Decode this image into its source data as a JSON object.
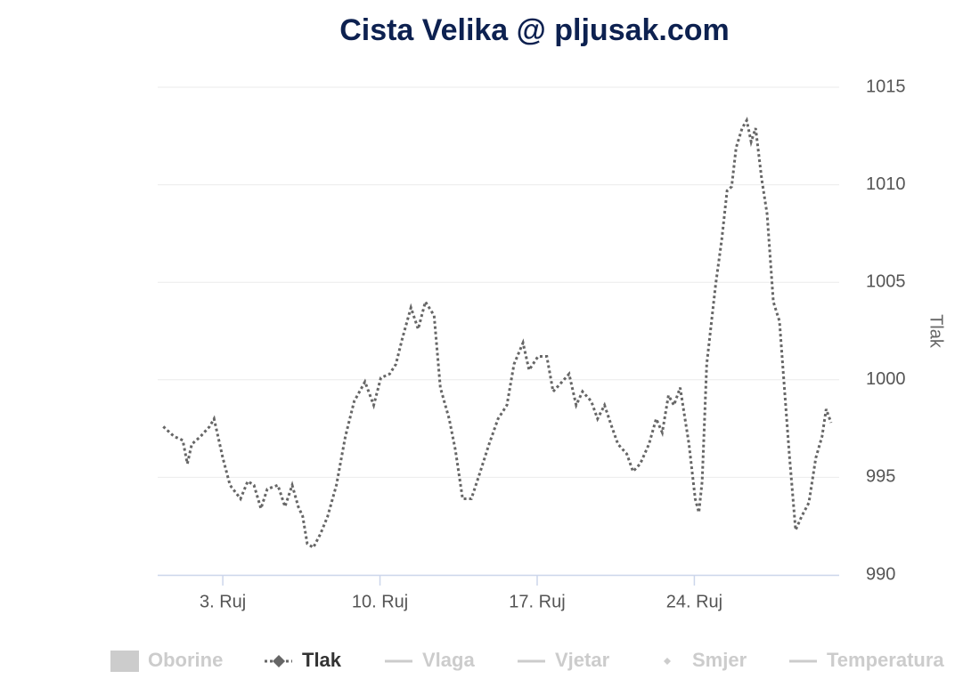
{
  "chart_data": {
    "type": "line",
    "title": "Cista Velika @ pljusak.com",
    "y_axis_label": "Tlak",
    "xlim": [
      0.1,
      30.45
    ],
    "xticks": [
      {
        "value": 3,
        "label": "3. Ruj"
      },
      {
        "value": 10,
        "label": "10. Ruj"
      },
      {
        "value": 17,
        "label": "17. Ruj"
      },
      {
        "value": 24,
        "label": "24. Ruj"
      }
    ],
    "ylim": [
      990,
      1015
    ],
    "yticks": [
      990,
      995,
      1000,
      1005,
      1010,
      1015
    ],
    "grid": true,
    "legend": [
      {
        "name": "Oborine",
        "symbol": "rect",
        "visible": false
      },
      {
        "name": "Tlak",
        "symbol": "line-diamond",
        "visible": true
      },
      {
        "name": "Vlaga",
        "symbol": "line",
        "visible": false
      },
      {
        "name": "Vjetar",
        "symbol": "line",
        "visible": false
      },
      {
        "name": "Smjer",
        "symbol": "diamond",
        "visible": false
      },
      {
        "name": "Temperatura",
        "symbol": "line",
        "visible": false
      }
    ],
    "series": [
      {
        "name": "Tlak",
        "color": "#666666",
        "dashed": true,
        "x": [
          0.35,
          0.83,
          1.22,
          1.42,
          1.62,
          2.01,
          2.41,
          2.61,
          3.0,
          3.32,
          3.79,
          4.11,
          4.39,
          4.7,
          4.98,
          5.45,
          5.77,
          6.09,
          6.36,
          6.56,
          6.76,
          7.03,
          7.35,
          7.67,
          8.06,
          8.46,
          8.85,
          9.33,
          9.72,
          10.04,
          10.43,
          10.71,
          10.99,
          11.38,
          11.7,
          12.02,
          12.41,
          12.69,
          13.08,
          13.36,
          13.68,
          14.07,
          14.47,
          14.86,
          15.26,
          15.65,
          15.97,
          16.37,
          16.64,
          17.04,
          17.43,
          17.71,
          18.11,
          18.42,
          18.74,
          19.02,
          19.41,
          19.69,
          20.0,
          20.32,
          20.6,
          20.99,
          21.27,
          21.59,
          21.98,
          22.3,
          22.57,
          22.85,
          23.09,
          23.37,
          23.76,
          24.04,
          24.2,
          24.35,
          24.55,
          24.95,
          25.22,
          25.46,
          25.66,
          25.86,
          26.13,
          26.33,
          26.53,
          26.73,
          27.0,
          27.24,
          27.52,
          27.79,
          27.99,
          28.23,
          28.51,
          28.78,
          29.1,
          29.41,
          29.69,
          29.87,
          30.09
        ],
        "values": [
          997.6,
          997.1,
          996.9,
          995.7,
          996.7,
          997.1,
          997.6,
          998.0,
          996.0,
          994.6,
          993.9,
          994.8,
          994.6,
          993.4,
          994.4,
          994.6,
          993.5,
          994.6,
          993.5,
          993.0,
          991.6,
          991.4,
          992.1,
          993.0,
          994.6,
          997.1,
          998.9,
          999.9,
          998.7,
          1000.1,
          1000.3,
          1000.8,
          1002.1,
          1003.7,
          1002.6,
          1004.0,
          1003.3,
          999.6,
          998.0,
          996.4,
          993.9,
          993.9,
          995.3,
          996.7,
          998.0,
          998.7,
          1000.8,
          1001.9,
          1000.5,
          1001.2,
          1001.2,
          999.4,
          999.9,
          1000.3,
          998.7,
          999.4,
          998.9,
          998.0,
          998.7,
          997.6,
          996.7,
          996.2,
          995.3,
          995.7,
          996.7,
          998.0,
          997.3,
          999.2,
          998.7,
          999.6,
          996.7,
          993.9,
          993.2,
          994.8,
          1000.8,
          1004.9,
          1007.2,
          1009.7,
          1009.9,
          1011.9,
          1012.9,
          1013.3,
          1012.2,
          1012.9,
          1010.3,
          1008.5,
          1004.0,
          1003.0,
          999.9,
          996.2,
          992.3,
          993.0,
          993.7,
          996.0,
          997.1,
          998.5,
          997.8
        ]
      }
    ]
  }
}
